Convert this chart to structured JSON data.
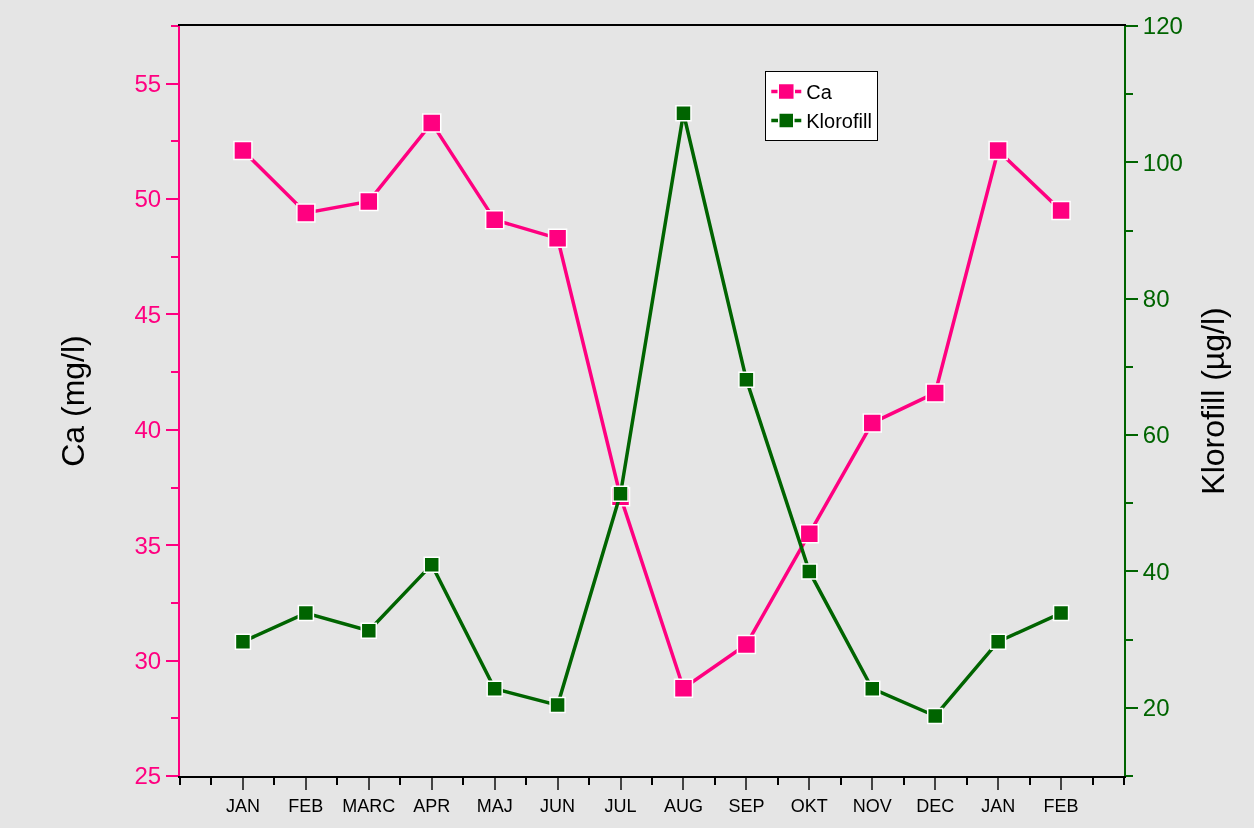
{
  "chart_data": {
    "type": "line",
    "ylabel": "Ca (mg/l)",
    "y2label": "Klorofill (µg/l)",
    "categories": [
      "JAN",
      "FEB",
      "MARC",
      "APR",
      "MAJ",
      "JUN",
      "JUL",
      "AUG",
      "SEP",
      "OKT",
      "NOV",
      "DEC",
      "JAN",
      "FEB"
    ],
    "series": [
      {
        "name": "Ca",
        "color": "#ff0080",
        "values": [
          52.1,
          49.4,
          49.9,
          53.3,
          49.1,
          48.3,
          37.1,
          28.8,
          30.7,
          35.5,
          40.3,
          41.6,
          52.1,
          49.5
        ]
      },
      {
        "name": "Klorofill",
        "color": "#006400",
        "axis": "y2",
        "values": [
          29.7,
          33.9,
          31.3,
          41.0,
          22.8,
          20.4,
          51.4,
          107.2,
          68.1,
          40.0,
          22.8,
          18.8,
          29.7,
          33.9
        ]
      }
    ],
    "ylim": [
      25,
      57.5
    ],
    "yticks": [
      25,
      30,
      35,
      40,
      45,
      50,
      55
    ],
    "y2lim": [
      10,
      120
    ],
    "y2ticks": [
      20,
      40,
      60,
      80,
      100,
      120
    ],
    "marker": "square",
    "line_style": "solid",
    "legend": "top right",
    "grid": false
  }
}
